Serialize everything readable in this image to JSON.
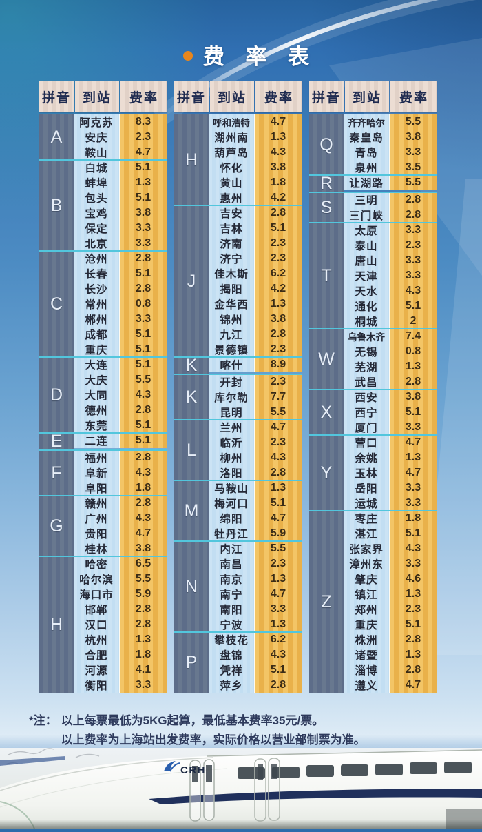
{
  "title": {
    "text": "费 率 表",
    "bullet_icon": "orange-dot",
    "bullet_color": "#e8861c"
  },
  "table": {
    "headers": [
      "拼音",
      "到站",
      "费率"
    ],
    "columns": [
      {
        "groups": [
          {
            "letter": "A",
            "rows": [
              [
                "阿克苏",
                "8.3"
              ],
              [
                "安庆",
                "2.3"
              ],
              [
                "鞍山",
                "4.7"
              ]
            ]
          },
          {
            "letter": "B",
            "rows": [
              [
                "白城",
                "5.1"
              ],
              [
                "蚌埠",
                "1.3"
              ],
              [
                "包头",
                "5.1"
              ],
              [
                "宝鸡",
                "3.8"
              ],
              [
                "保定",
                "3.3"
              ],
              [
                "北京",
                "3.3"
              ]
            ]
          },
          {
            "letter": "C",
            "rows": [
              [
                "沧州",
                "2.8"
              ],
              [
                "长春",
                "5.1"
              ],
              [
                "长沙",
                "2.8"
              ],
              [
                "常州",
                "0.8"
              ],
              [
                "郴州",
                "3.3"
              ],
              [
                "成都",
                "5.1"
              ],
              [
                "重庆",
                "5.1"
              ]
            ]
          },
          {
            "letter": "D",
            "rows": [
              [
                "大连",
                "5.1"
              ],
              [
                "大庆",
                "5.5"
              ],
              [
                "大同",
                "4.3"
              ],
              [
                "德州",
                "2.8"
              ],
              [
                "东莞",
                "5.1"
              ]
            ]
          },
          {
            "letter": "E",
            "rows": [
              [
                "二连",
                "5.1"
              ]
            ]
          },
          {
            "letter": "F",
            "rows": [
              [
                "福州",
                "2.8"
              ],
              [
                "阜新",
                "4.3"
              ],
              [
                "阜阳",
                "1.8"
              ]
            ]
          },
          {
            "letter": "G",
            "rows": [
              [
                "赣州",
                "2.8"
              ],
              [
                "广州",
                "4.3"
              ],
              [
                "贵阳",
                "4.7"
              ],
              [
                "桂林",
                "3.8"
              ]
            ]
          },
          {
            "letter": "H",
            "rows": [
              [
                "哈密",
                "6.5"
              ],
              [
                "哈尔滨",
                "5.5"
              ],
              [
                "海口市",
                "5.9"
              ],
              [
                "邯郸",
                "2.8"
              ],
              [
                "汉口",
                "2.8"
              ],
              [
                "杭州",
                "1.3"
              ],
              [
                "合肥",
                "1.8"
              ],
              [
                "河源",
                "4.1"
              ],
              [
                "衡阳",
                "3.3"
              ]
            ]
          }
        ]
      },
      {
        "groups": [
          {
            "letter": "H",
            "rows": [
              [
                "呼和浩特",
                "4.7"
              ],
              [
                "湖州南",
                "1.3"
              ],
              [
                "葫芦岛",
                "4.3"
              ],
              [
                "怀化",
                "3.8"
              ],
              [
                "黄山",
                "1.8"
              ],
              [
                "惠州",
                "4.2"
              ]
            ]
          },
          {
            "letter": "J",
            "rows": [
              [
                "吉安",
                "2.8"
              ],
              [
                "吉林",
                "5.1"
              ],
              [
                "济南",
                "2.3"
              ],
              [
                "济宁",
                "2.3"
              ],
              [
                "佳木斯",
                "6.2"
              ],
              [
                "揭阳",
                "4.2"
              ],
              [
                "金华西",
                "1.3"
              ],
              [
                "锦州",
                "3.8"
              ],
              [
                "九江",
                "2.8"
              ],
              [
                "景德镇",
                "2.3"
              ]
            ]
          },
          {
            "letter": "K",
            "rows": [
              [
                "喀什",
                "8.9"
              ]
            ]
          },
          {
            "letter": "K",
            "rows": [
              [
                "开封",
                "2.3"
              ],
              [
                "库尔勒",
                "7.7"
              ],
              [
                "昆明",
                "5.5"
              ]
            ]
          },
          {
            "letter": "L",
            "rows": [
              [
                "兰州",
                "4.7"
              ],
              [
                "临沂",
                "2.3"
              ],
              [
                "柳州",
                "4.3"
              ],
              [
                "洛阳",
                "2.8"
              ]
            ]
          },
          {
            "letter": "M",
            "rows": [
              [
                "马鞍山",
                "1.3"
              ],
              [
                "梅河口",
                "5.1"
              ],
              [
                "绵阳",
                "4.7"
              ],
              [
                "牡丹江",
                "5.9"
              ]
            ]
          },
          {
            "letter": "N",
            "rows": [
              [
                "内江",
                "5.5"
              ],
              [
                "南昌",
                "2.3"
              ],
              [
                "南京",
                "1.3"
              ],
              [
                "南宁",
                "4.7"
              ],
              [
                "南阳",
                "3.3"
              ],
              [
                "宁波",
                "1.3"
              ]
            ]
          },
          {
            "letter": "P",
            "rows": [
              [
                "攀枝花",
                "6.2"
              ],
              [
                "盘锦",
                "4.3"
              ],
              [
                "凭祥",
                "5.1"
              ],
              [
                "萍乡",
                "2.8"
              ]
            ]
          }
        ]
      },
      {
        "groups": [
          {
            "letter": "Q",
            "rows": [
              [
                "齐齐哈尔",
                "5.5"
              ],
              [
                "秦皇岛",
                "3.8"
              ],
              [
                "青岛",
                "3.3"
              ],
              [
                "泉州",
                "3.5"
              ]
            ]
          },
          {
            "letter": "R",
            "rows": [
              [
                "让湖路",
                "5.5"
              ]
            ]
          },
          {
            "letter": "S",
            "rows": [
              [
                "三明",
                "2.8"
              ],
              [
                "三门峡",
                "2.8"
              ]
            ]
          },
          {
            "letter": "T",
            "rows": [
              [
                "太原",
                "3.3"
              ],
              [
                "泰山",
                "2.3"
              ],
              [
                "唐山",
                "3.3"
              ],
              [
                "天津",
                "3.3"
              ],
              [
                "天水",
                "4.3"
              ],
              [
                "通化",
                "5.1"
              ],
              [
                "桐城",
                "2"
              ]
            ]
          },
          {
            "letter": "W",
            "rows": [
              [
                "乌鲁木齐",
                "7.4"
              ],
              [
                "无锡",
                "0.8"
              ],
              [
                "芜湖",
                "1.3"
              ],
              [
                "武昌",
                "2.8"
              ]
            ]
          },
          {
            "letter": "X",
            "rows": [
              [
                "西安",
                "3.8"
              ],
              [
                "西宁",
                "5.1"
              ],
              [
                "厦门",
                "3.3"
              ]
            ]
          },
          {
            "letter": "Y",
            "rows": [
              [
                "营口",
                "4.7"
              ],
              [
                "余姚",
                "1.3"
              ],
              [
                "玉林",
                "4.7"
              ],
              [
                "岳阳",
                "3.3"
              ],
              [
                "运城",
                "3.3"
              ]
            ]
          },
          {
            "letter": "Z",
            "rows": [
              [
                "枣庄",
                "1.8"
              ],
              [
                "湛江",
                "5.1"
              ],
              [
                "张家界",
                "4.3"
              ],
              [
                "漳州东",
                "3.3"
              ],
              [
                "肇庆",
                "4.6"
              ],
              [
                "镇江",
                "1.3"
              ],
              [
                "郑州",
                "2.3"
              ],
              [
                "重庆",
                "5.1"
              ],
              [
                "株洲",
                "2.8"
              ],
              [
                "诸暨",
                "1.3"
              ],
              [
                "淄博",
                "2.8"
              ],
              [
                "遵义",
                "4.7"
              ]
            ]
          }
        ]
      }
    ]
  },
  "footnote": {
    "marker": "*注：",
    "line1": "以上每票最低为5KG起算，最低基本费率35元/票。",
    "line2": "以上费率为上海站出发费率，实际价格以营业部制票为准。"
  },
  "train": {
    "logo": "CRH"
  },
  "colors": {
    "accent_orange": "#e8861c",
    "bg_top_blue": "#2d6cab",
    "header_cell": "#e8d9d0",
    "pinyin_column": "#64748f",
    "city_column": "#c2def2",
    "rate_column": "#efba52",
    "group_divider": "#52c6dd",
    "train_stripe_navy": "#20305c"
  }
}
